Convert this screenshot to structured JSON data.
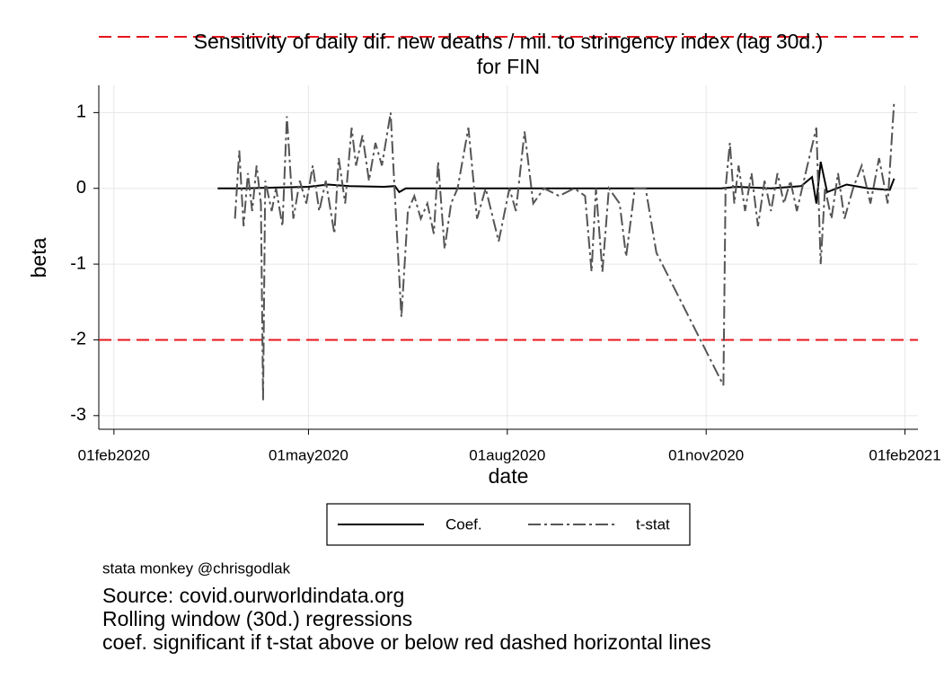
{
  "chart_data": {
    "type": "line",
    "title": [
      "Sensitivity of daily dif. new deaths / mil. to stringency index (lag 30d.)",
      "for FIN"
    ],
    "x_label": "date",
    "y_label": "beta",
    "xlim": [
      "2020-01-25",
      "2021-02-07"
    ],
    "xticks": [
      {
        "value": "2020-02-01",
        "label": "01feb2020"
      },
      {
        "value": "2020-05-01",
        "label": "01may2020"
      },
      {
        "value": "2020-08-01",
        "label": "01aug2020"
      },
      {
        "value": "2020-11-01",
        "label": "01nov2020"
      },
      {
        "value": "2021-02-01",
        "label": "01feb2021"
      }
    ],
    "ylim": [
      -3.18,
      1.36
    ],
    "yticks": [
      1,
      0,
      -1,
      -2,
      -3
    ],
    "grid": true,
    "hlines": [
      2,
      -2
    ],
    "hline_color": "#e8141c",
    "series": [
      {
        "name": "Coef.",
        "color": "#000000",
        "dash": "none",
        "x": [
          "2020-03-20",
          "2020-04-01",
          "2020-04-15",
          "2020-05-01",
          "2020-05-10",
          "2020-05-20",
          "2020-06-05",
          "2020-06-10",
          "2020-06-12",
          "2020-06-15",
          "2020-11-08",
          "2020-11-15",
          "2020-12-01",
          "2020-12-15",
          "2020-12-20",
          "2020-12-22",
          "2020-12-24",
          "2020-12-27",
          "2021-01-05",
          "2021-01-15",
          "2021-01-25",
          "2021-01-27"
        ],
        "values": [
          0,
          0,
          0.01,
          0.02,
          0.05,
          0.03,
          0.02,
          0.03,
          -0.05,
          0,
          0,
          0.02,
          0,
          0.03,
          0.15,
          -0.2,
          0.35,
          -0.05,
          0.05,
          0,
          -0.02,
          0.13
        ]
      },
      {
        "name": "t-stat",
        "color": "#555555",
        "dash": "14,4,3,4",
        "x": [
          "2020-03-28",
          "2020-03-30",
          "2020-04-01",
          "2020-04-03",
          "2020-04-05",
          "2020-04-07",
          "2020-04-09",
          "2020-04-10",
          "2020-04-11",
          "2020-04-14",
          "2020-04-16",
          "2020-04-19",
          "2020-04-21",
          "2020-04-24",
          "2020-04-27",
          "2020-04-30",
          "2020-05-03",
          "2020-05-06",
          "2020-05-09",
          "2020-05-13",
          "2020-05-15",
          "2020-05-18",
          "2020-05-21",
          "2020-05-23",
          "2020-05-26",
          "2020-05-29",
          "2020-06-01",
          "2020-06-04",
          "2020-06-08",
          "2020-06-10",
          "2020-06-13",
          "2020-06-16",
          "2020-06-19",
          "2020-06-22",
          "2020-06-25",
          "2020-06-28",
          "2020-06-30",
          "2020-07-03",
          "2020-07-06",
          "2020-07-09",
          "2020-07-14",
          "2020-07-18",
          "2020-07-22",
          "2020-07-28",
          "2020-08-02",
          "2020-08-05",
          "2020-08-09",
          "2020-08-13",
          "2020-08-18",
          "2020-08-25",
          "2020-09-01",
          "2020-09-06",
          "2020-09-09",
          "2020-09-11",
          "2020-09-14",
          "2020-09-17",
          "2020-09-22",
          "2020-09-25",
          "2020-09-29",
          "2020-10-04",
          "2020-10-09",
          "2020-11-09",
          "2020-11-10",
          "2020-11-12",
          "2020-11-14",
          "2020-11-16",
          "2020-11-19",
          "2020-11-22",
          "2020-11-25",
          "2020-11-28",
          "2020-12-01",
          "2020-12-04",
          "2020-12-07",
          "2020-12-10",
          "2020-12-13",
          "2020-12-17",
          "2020-12-22",
          "2020-12-24",
          "2020-12-26",
          "2020-12-29",
          "2021-01-01",
          "2021-01-04",
          "2021-01-08",
          "2021-01-12",
          "2021-01-16",
          "2021-01-20",
          "2021-01-24",
          "2021-01-27"
        ],
        "values": [
          -0.4,
          0.5,
          -0.5,
          0.2,
          -0.3,
          0.3,
          -0.2,
          -2.8,
          0.1,
          -0.3,
          0,
          -0.5,
          0.95,
          -0.4,
          0.1,
          -0.2,
          0.3,
          -0.3,
          0.1,
          -0.6,
          0.4,
          -0.2,
          0.8,
          0.3,
          0.7,
          0.1,
          0.6,
          0.3,
          1,
          -0.1,
          -1.7,
          -0.3,
          -0.1,
          -0.4,
          -0.2,
          -0.6,
          0.35,
          -0.8,
          -0.2,
          0,
          0.8,
          -0.4,
          0,
          -0.7,
          0,
          -0.3,
          0.75,
          -0.2,
          0,
          -0.1,
          0,
          -0.1,
          -1.1,
          0,
          -1.1,
          0,
          -0.2,
          -0.9,
          0,
          0,
          -0.85,
          -2.6,
          0,
          0.6,
          -0.2,
          0.3,
          -0.3,
          0.2,
          -0.5,
          0.1,
          -0.3,
          0.2,
          -0.2,
          0.1,
          -0.3,
          0.2,
          0.8,
          -1,
          0,
          -0.4,
          0.2,
          -0.4,
          0,
          0.3,
          -0.2,
          0.4,
          -0.2,
          1.15
        ]
      }
    ],
    "notes": [
      "stata monkey @chrisgodlak"
    ],
    "caption": [
      "Source: covid.ourworldindata.org",
      "Rolling window (30d.) regressions",
      "coef. significant if t-stat above or below red dashed horizontal lines"
    ]
  }
}
